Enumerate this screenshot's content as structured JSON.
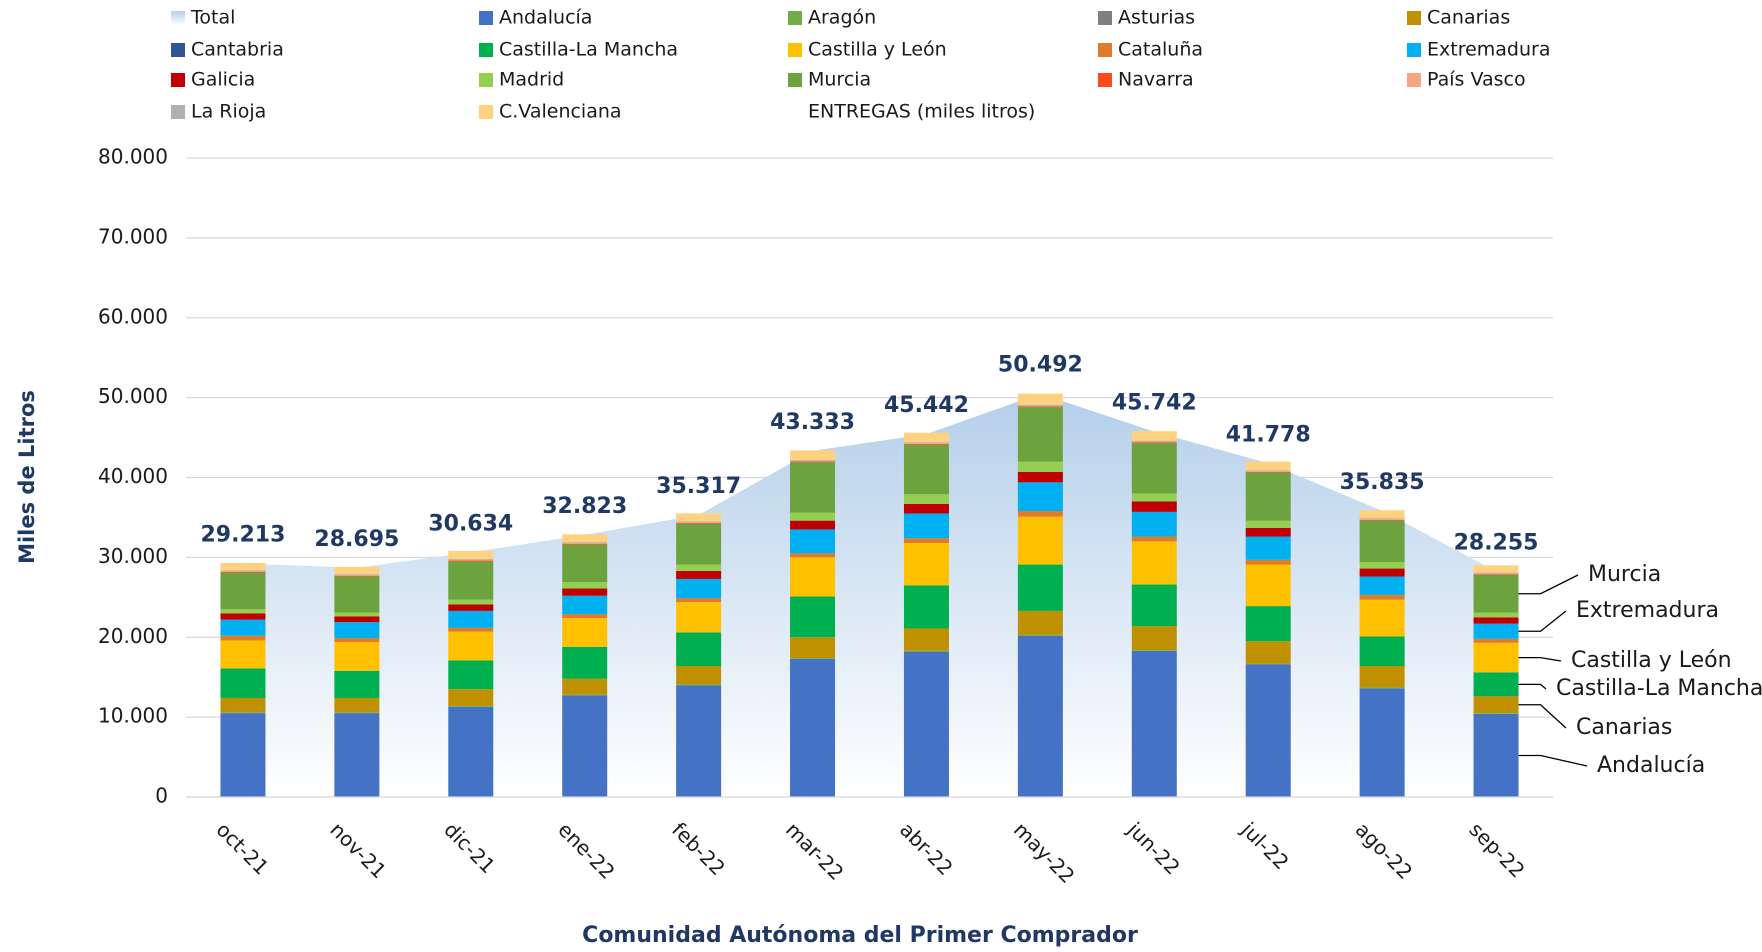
{
  "chart_data": {
    "type": "bar",
    "stacked": true,
    "x_label": "Comunidad Autónoma del Primer Comprador",
    "y_label": "Miles de Litros",
    "legend_note": "ENTREGAS (miles litros)",
    "categories": [
      "oct-21",
      "nov-21",
      "dic-21",
      "ene-22",
      "feb-22",
      "mar-22",
      "abr-22",
      "may-22",
      "jun-22",
      "jul-22",
      "ago-22",
      "sep-22"
    ],
    "ylim": [
      0,
      80000
    ],
    "yticks": [
      0,
      {
        "value": 10000,
        "label": "10.000"
      },
      {
        "value": 20000,
        "label": "20.000"
      },
      {
        "value": 30000,
        "label": "30.000"
      },
      {
        "value": 40000,
        "label": "40.000"
      },
      {
        "value": 50000,
        "label": "50.000"
      },
      {
        "value": 60000,
        "label": "60.000"
      },
      {
        "value": 70000,
        "label": "70.000"
      },
      {
        "value": 80000,
        "label": "80.000"
      }
    ],
    "grid": true,
    "series": [
      {
        "name": "Total",
        "type": "area",
        "color": "#bdd7ee",
        "values": [
          29213,
          28695,
          30634,
          32823,
          35317,
          43333,
          45442,
          50492,
          45742,
          41778,
          35835,
          28255
        ],
        "value_labels": [
          "29.213",
          "28.695",
          "30.634",
          "32.823",
          "35.317",
          "43.333",
          "45.442",
          "50.492",
          "45.742",
          "41.778",
          "35.835",
          "28.255"
        ]
      },
      {
        "name": "Andalucía",
        "color": "#4472c4",
        "values": [
          10500,
          10500,
          11300,
          12700,
          14000,
          17300,
          18200,
          20200,
          18300,
          16600,
          13600,
          10400
        ]
      },
      {
        "name": "Aragón",
        "color": "#70ad47",
        "values": [
          100,
          100,
          100,
          100,
          100,
          100,
          100,
          100,
          100,
          100,
          100,
          100
        ]
      },
      {
        "name": "Asturias",
        "color": "#7f7f7f",
        "values": [
          0,
          0,
          0,
          0,
          0,
          0,
          0,
          0,
          0,
          0,
          0,
          0
        ]
      },
      {
        "name": "Canarias",
        "color": "#bf9000",
        "values": [
          1800,
          1800,
          2100,
          2000,
          2300,
          2600,
          2800,
          3000,
          3000,
          2800,
          2700,
          2100
        ]
      },
      {
        "name": "Cantabria",
        "color": "#2f5597",
        "values": [
          0,
          0,
          0,
          0,
          0,
          0,
          0,
          0,
          0,
          0,
          0,
          0
        ]
      },
      {
        "name": "Castilla-La Mancha",
        "color": "#00b050",
        "values": [
          3700,
          3400,
          3600,
          4000,
          4200,
          5100,
          5400,
          5800,
          5200,
          4400,
          3700,
          3000
        ]
      },
      {
        "name": "Castilla y León",
        "color": "#ffc000",
        "values": [
          3500,
          3600,
          3600,
          3600,
          3800,
          4900,
          5300,
          6000,
          5400,
          5200,
          4600,
          3700
        ]
      },
      {
        "name": "Cataluña",
        "color": "#e07b2a",
        "values": [
          600,
          500,
          500,
          500,
          500,
          500,
          600,
          700,
          600,
          600,
          600,
          500
        ]
      },
      {
        "name": "Extremadura",
        "color": "#00b0f0",
        "values": [
          2000,
          2000,
          2100,
          2300,
          2400,
          3000,
          3100,
          3600,
          3100,
          2900,
          2300,
          1900
        ]
      },
      {
        "name": "Galicia",
        "color": "#c00000",
        "values": [
          800,
          700,
          800,
          900,
          1000,
          1100,
          1200,
          1300,
          1300,
          1100,
          1000,
          800
        ]
      },
      {
        "name": "Madrid",
        "color": "#92d050",
        "values": [
          500,
          500,
          600,
          800,
          800,
          1000,
          1200,
          1300,
          1000,
          900,
          800,
          600
        ]
      },
      {
        "name": "Murcia",
        "color": "#6ca33f",
        "values": [
          4600,
          4500,
          4800,
          4700,
          5100,
          6300,
          6200,
          6800,
          6300,
          6000,
          5200,
          4700
        ]
      },
      {
        "name": "Navarra",
        "color": "#ff4b1a",
        "values": [
          100,
          100,
          100,
          100,
          100,
          100,
          100,
          100,
          100,
          100,
          100,
          100
        ]
      },
      {
        "name": "País Vasco",
        "color": "#f4a582",
        "values": [
          100,
          100,
          100,
          100,
          100,
          100,
          100,
          100,
          100,
          100,
          100,
          100
        ]
      },
      {
        "name": "La Rioja",
        "color": "#b0b0b0",
        "values": [
          100,
          100,
          100,
          100,
          100,
          100,
          100,
          100,
          100,
          100,
          100,
          100
        ]
      },
      {
        "name": "C.Valenciana",
        "color": "#ffd27f",
        "values": [
          900,
          900,
          1000,
          1000,
          1000,
          1200,
          1200,
          1400,
          1200,
          1100,
          1000,
          900
        ]
      }
    ],
    "annotations": [
      "Murcia",
      "Extremadura",
      "Castilla y León",
      "Castilla-La Mancha",
      "Canarias",
      "Andalucía"
    ]
  }
}
